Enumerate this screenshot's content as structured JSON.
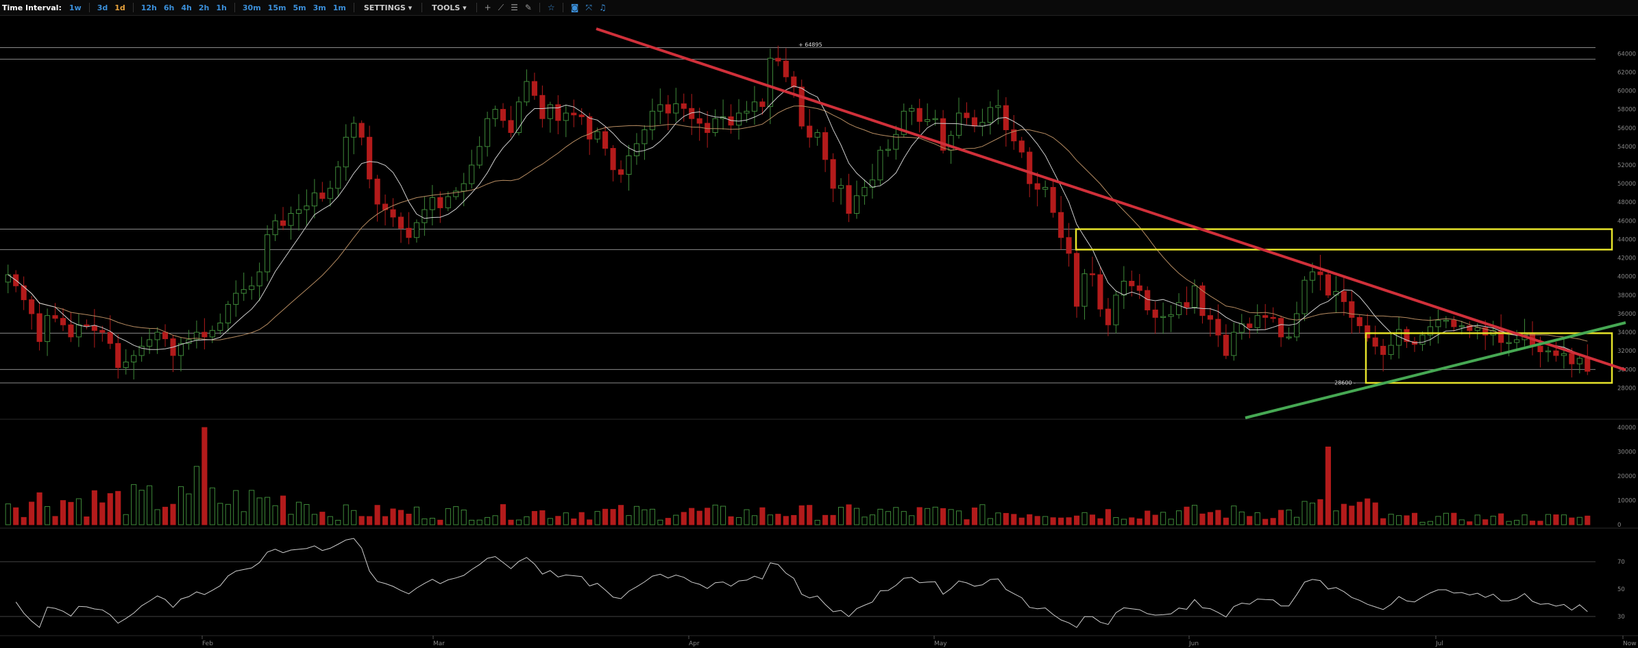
{
  "toolbar": {
    "label": "Time Interval:",
    "intervals_group1": [
      "1w",
      "3d",
      "1d"
    ],
    "intervals_group2": [
      "12h",
      "6h",
      "4h",
      "2h",
      "1h"
    ],
    "intervals_group3": [
      "30m",
      "15m",
      "5m",
      "3m",
      "1m"
    ],
    "active_interval": "1d",
    "settings_label": "SETTINGS ▾",
    "tools_label": "TOOLS ▾",
    "tool_icons": [
      "crosshair-icon",
      "line-draw-icon",
      "horizontal-lines-icon",
      "brush-icon",
      "star-icon",
      "camera-icon",
      "expand-icon",
      "bell-icon"
    ]
  },
  "colors": {
    "bull": "#3f8a3a",
    "bear": "#b31b1b",
    "trend_red": "#d0303a",
    "trend_green": "#46a853",
    "box_yellow": "#e5e22a",
    "ma_fast": "#d0d0d0",
    "ma_slow": "#b88d62"
  },
  "chart_data": [
    {
      "type": "candlestick",
      "title": "",
      "price_axis_ticks": [
        "64000",
        "62000",
        "60000",
        "58000",
        "56000",
        "54000",
        "52000",
        "50000",
        "48000",
        "46000",
        "44000",
        "42000",
        "40000",
        "38000",
        "36000",
        "34000",
        "32000",
        "30000",
        "28000"
      ],
      "ylim": [
        27000,
        65200
      ],
      "x_labels": [
        "Feb",
        "Mar",
        "Apr",
        "May",
        "Jun",
        "Jul",
        "Now"
      ],
      "annotations": [
        "64895",
        "28600"
      ],
      "horizontal_levels": [
        64650,
        63400,
        45100,
        42900,
        33900,
        30000,
        28550
      ],
      "closes": [
        40200,
        39000,
        37500,
        36000,
        33000,
        35800,
        35500,
        34800,
        33500,
        34800,
        34700,
        34200,
        34000,
        32800,
        30200,
        30800,
        31500,
        32500,
        33200,
        34000,
        33300,
        31500,
        32800,
        33200,
        34000,
        33500,
        34200,
        35000,
        37000,
        38200,
        38600,
        39000,
        40500,
        44500,
        46000,
        45500,
        46800,
        47200,
        47600,
        49000,
        48400,
        49500,
        51800,
        55000,
        56500,
        55000,
        50500,
        47800,
        47200,
        46400,
        45200,
        44200,
        45800,
        47200,
        48500,
        47400,
        48600,
        49200,
        50000,
        52000,
        54000,
        57000,
        58000,
        56800,
        55500,
        58800,
        61000,
        59500,
        57000,
        58500,
        56800,
        57600,
        57400,
        57200,
        54800,
        55600,
        53800,
        51500,
        51000,
        53000,
        54300,
        55800,
        57800,
        58500,
        57600,
        58600,
        58100,
        57000,
        56500,
        55500,
        57000,
        57200,
        56300,
        57600,
        57800,
        58800,
        58300,
        63500,
        63200,
        61500,
        60400,
        56200,
        55000,
        55500,
        52600,
        49500,
        49800,
        46800,
        48700,
        49600,
        50400,
        53600,
        53700,
        55300,
        57800,
        58100,
        56700,
        56900,
        57000,
        53600,
        55200,
        57600,
        57100,
        56200,
        56600,
        58200,
        58400,
        55800,
        54600,
        53400,
        50000,
        49400,
        49600,
        46900,
        44200,
        42500,
        36800,
        40300,
        40200,
        36500,
        34800,
        38000,
        39500,
        39000,
        38500,
        36400,
        35600,
        35700,
        35900,
        37200,
        36700,
        39000,
        35800,
        35400,
        33700,
        31500,
        34000,
        34900,
        34500,
        35800,
        35600,
        35500,
        33500,
        33500,
        36000,
        39600,
        40500,
        40200,
        38000,
        38400,
        37300,
        35600,
        34700,
        33400,
        32500,
        31600,
        32600,
        34300,
        33000,
        32700,
        33700,
        34600,
        35300,
        35300,
        34600,
        34700,
        34200,
        34500,
        33700,
        34200,
        32900,
        32900,
        33200,
        33900,
        32500,
        31900,
        32000,
        31500,
        31700,
        30600,
        31200,
        29800
      ]
    },
    {
      "type": "bar",
      "title": "Volume",
      "axis_ticks": [
        "40000",
        "30000",
        "20000",
        "10000",
        "0"
      ],
      "ylim": [
        0,
        42000
      ],
      "spikes": [
        {
          "index": 25,
          "value": 40000
        },
        {
          "index": 24,
          "value": 24000
        },
        {
          "index": 168,
          "value": 32000
        }
      ]
    },
    {
      "type": "line",
      "title": "RSI",
      "axis_ticks": [
        "70",
        "50",
        "30"
      ],
      "ylim": [
        20,
        90
      ]
    }
  ]
}
